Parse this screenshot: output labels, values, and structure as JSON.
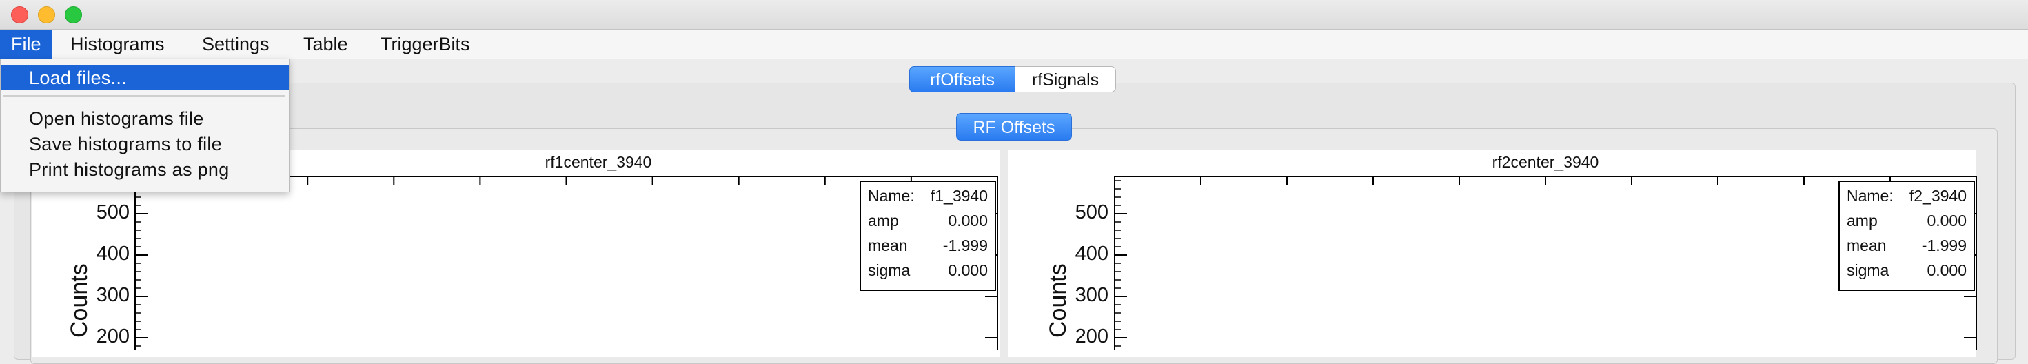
{
  "menubar": {
    "items": [
      "File",
      "Histograms",
      "Settings",
      "Table",
      "TriggerBits"
    ]
  },
  "file_menu": {
    "items": [
      "Load files...",
      "Open histograms file",
      "Save histograms to file",
      "Print histograms as png"
    ]
  },
  "tabs": {
    "outer": [
      "rfOffsets",
      "rfSignals"
    ],
    "selected": "rfOffsets",
    "inner": "RF Offsets"
  },
  "plots": [
    {
      "title": "rf1center_3940",
      "ylabel": "Counts",
      "yticks": [
        "500",
        "400",
        "300",
        "200"
      ],
      "stats": {
        "name_label": "Name:",
        "name": "f1_3940",
        "rows": [
          [
            "amp",
            "0.000"
          ],
          [
            "mean",
            "-1.999"
          ],
          [
            "sigma",
            "0.000"
          ]
        ]
      }
    },
    {
      "title": "rf2center_3940",
      "ylabel": "Counts",
      "yticks": [
        "500",
        "400",
        "300",
        "200"
      ],
      "stats": {
        "name_label": "Name:",
        "name": "f2_3940",
        "rows": [
          [
            "amp",
            "0.000"
          ],
          [
            "mean",
            "-1.999"
          ],
          [
            "sigma",
            "0.000"
          ]
        ]
      }
    }
  ],
  "colors": {
    "accent": "#1b64d8",
    "tab_blue": "#2a7bf0"
  }
}
